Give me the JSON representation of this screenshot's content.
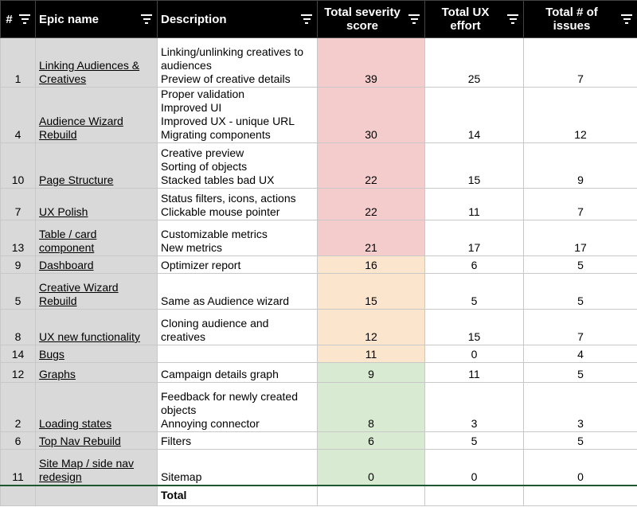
{
  "headers": {
    "num": "#",
    "epic": "Epic name",
    "desc": "Description",
    "sev": "Total severity score",
    "ux": "Total UX effort",
    "issues": "Total # of issues"
  },
  "rows": [
    {
      "num": "1",
      "epic": "Linking Audiences & Creatives",
      "desc": [
        "Linking/unlinking creatives to audiences",
        "Preview of creative details"
      ],
      "sev": "39",
      "ux": "25",
      "issues": "7",
      "tone": "red"
    },
    {
      "num": "4",
      "epic": "Audience Wizard Rebuild",
      "desc": [
        "Proper validation",
        "Improved UI",
        "Improved UX - unique URL",
        "Migrating components"
      ],
      "sev": "30",
      "ux": "14",
      "issues": "12",
      "tone": "red"
    },
    {
      "num": "10",
      "epic": "Page Structure",
      "desc": [
        "Creative preview",
        "Sorting of objects",
        "Stacked tables bad UX"
      ],
      "sev": "22",
      "ux": "15",
      "issues": "9",
      "tone": "red"
    },
    {
      "num": "7",
      "epic": "UX Polish",
      "desc": [
        "Status filters, icons, actions",
        "Clickable mouse pointer"
      ],
      "sev": "22",
      "ux": "11",
      "issues": "7",
      "tone": "red"
    },
    {
      "num": "13",
      "epic": "Table / card component",
      "desc": [
        "Customizable metrics",
        "New metrics"
      ],
      "sev": "21",
      "ux": "17",
      "issues": "17",
      "tone": "red"
    },
    {
      "num": "9",
      "epic": "Dashboard",
      "desc": [
        "Optimizer report"
      ],
      "sev": "16",
      "ux": "6",
      "issues": "5",
      "tone": "orange"
    },
    {
      "num": "5",
      "epic": "Creative Wizard Rebuild",
      "desc": [
        "Same as Audience wizard"
      ],
      "sev": "15",
      "ux": "5",
      "issues": "5",
      "tone": "orange"
    },
    {
      "num": "8",
      "epic": "UX new functionality",
      "desc": [
        "Cloning audience and creatives"
      ],
      "sev": "12",
      "ux": "15",
      "issues": "7",
      "tone": "orange"
    },
    {
      "num": "14",
      "epic": "Bugs",
      "desc": [],
      "sev": "11",
      "ux": "0",
      "issues": "4",
      "tone": "orange"
    },
    {
      "num": "12",
      "epic": "Graphs",
      "desc": [
        "Campaign details graph"
      ],
      "sev": "9",
      "ux": "11",
      "issues": "5",
      "tone": "green"
    },
    {
      "num": "2",
      "epic": "Loading states",
      "desc": [
        "Feedback for newly created objects",
        "Annoying connector"
      ],
      "sev": "8",
      "ux": "3",
      "issues": "3",
      "tone": "green"
    },
    {
      "num": "6",
      "epic": "Top Nav Rebuild",
      "desc": [
        "Filters"
      ],
      "sev": "6",
      "ux": "5",
      "issues": "5",
      "tone": "green"
    },
    {
      "num": "11",
      "epic": "Site Map / side nav redesign",
      "desc": [
        "Sitemap"
      ],
      "sev": "0",
      "ux": "0",
      "issues": "0",
      "tone": "green"
    }
  ],
  "total_label": "Total",
  "colors": {
    "red": "#f4cccc",
    "orange": "#fce5cd",
    "green": "#d9ead3",
    "header": "#000000",
    "rowhead": "#d9d9d9"
  }
}
